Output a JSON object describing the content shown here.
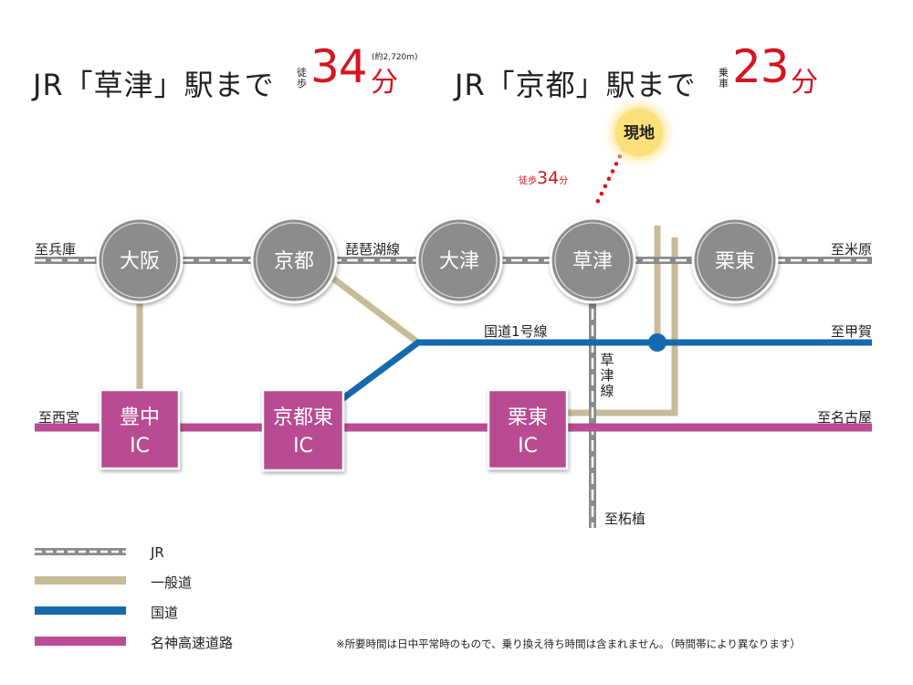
{
  "headline_left": {
    "prefix": "JR「草津」駅まで",
    "mode_top": "徒",
    "mode_bottom": "歩",
    "value": "34",
    "unit": "分",
    "distance": "(約2,720m)"
  },
  "headline_right": {
    "prefix": "JR「京都」駅まで",
    "mode_top": "乗",
    "mode_bottom": "車",
    "value": "23",
    "unit": "分"
  },
  "site": {
    "label": "現地",
    "walk_prefix": "徒歩",
    "walk_value": "34",
    "walk_unit": "分"
  },
  "stations": [
    "大阪",
    "京都",
    "大津",
    "草津",
    "栗東"
  ],
  "ics": [
    {
      "line1": "豊中",
      "line2": "IC"
    },
    {
      "line1": "京都東",
      "line2": "IC"
    },
    {
      "line1": "栗東",
      "line2": "IC"
    }
  ],
  "line_labels": {
    "biwako": "琵琶湖線",
    "route1": "国道1号線",
    "kusatsu_line": "草津線",
    "to_hyogo": "至兵庫",
    "to_maibara": "至米原",
    "to_koka": "至甲賀",
    "to_nishinomiya": "至西宮",
    "to_nagoya": "至名古屋",
    "to_tsuge": "至柘植"
  },
  "legend": [
    {
      "label": "JR",
      "color": "#8a8a8a"
    },
    {
      "label": "一般道",
      "color": "#c8bb98"
    },
    {
      "label": "国道",
      "color": "#1569ae"
    },
    {
      "label": "名神高速道路",
      "color": "#b94c93"
    }
  ],
  "note": "※所要時間は日中平常時のもので、乗り換え待ち時間は含まれません。（時間帯により異なります）",
  "colors": {
    "jr": "#8a8a8a",
    "road": "#c8bb98",
    "national": "#1569ae",
    "expressway": "#b94c93",
    "station": "#8c8c8c",
    "accent": "#d5151d"
  }
}
